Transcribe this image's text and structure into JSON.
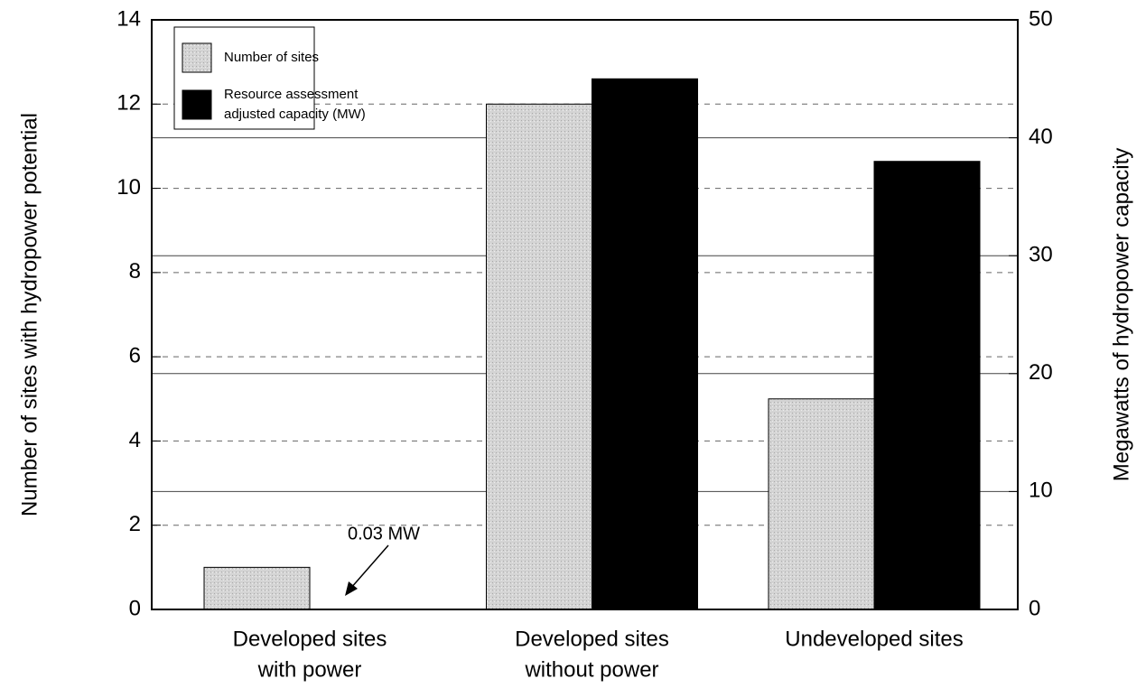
{
  "chart_data": {
    "type": "bar",
    "categories": [
      [
        "Developed sites",
        "with power"
      ],
      [
        "Developed sites",
        "without power"
      ],
      [
        "Undeveloped sites"
      ]
    ],
    "series": [
      {
        "name": "Number of sites",
        "color": "#d4d4d4",
        "axis": "y",
        "values": [
          1,
          12,
          5
        ]
      },
      {
        "name": [
          "Resource assessment",
          "adjusted capacity (MW)"
        ],
        "color": "#000000",
        "axis": "y2",
        "values": [
          0.03,
          45,
          38
        ]
      }
    ],
    "ylabel": "Number of sites with hydropower potential",
    "y2label": "Megawatts of hydropower capacity",
    "ylim": [
      0,
      14
    ],
    "yticks": [
      0,
      2,
      4,
      6,
      8,
      10,
      12,
      14
    ],
    "y2lim": [
      0,
      50
    ],
    "y2ticks": [
      0,
      10,
      20,
      30,
      40,
      50
    ],
    "annotation": "0.03 MW",
    "grid": true,
    "legend": "upper left"
  }
}
